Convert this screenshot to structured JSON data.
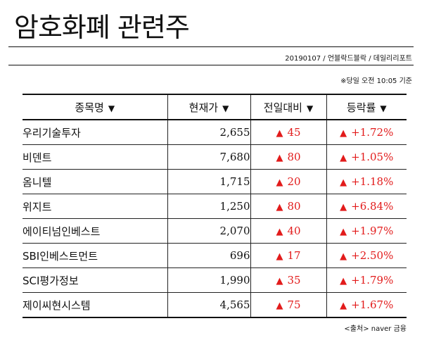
{
  "title": "암호화폐 관련주",
  "source_line": "20190107 / 언블락드블락 / 데일리리포트",
  "as_of": "※당일 오전 10:05 기준",
  "table": {
    "headers": [
      "종목명",
      "현재가",
      "전일대비",
      "등락률"
    ],
    "sort_icon": "▼",
    "rows": [
      {
        "name": "우리기술투자",
        "price": "2,655",
        "change": "45",
        "rate": "+1.72%"
      },
      {
        "name": "비덴트",
        "price": "7,680",
        "change": "80",
        "rate": "+1.05%"
      },
      {
        "name": "옴니텔",
        "price": "1,715",
        "change": "20",
        "rate": "+1.18%"
      },
      {
        "name": "위지트",
        "price": "1,250",
        "change": "80",
        "rate": "+6.84%"
      },
      {
        "name": "에이티넘인베스트",
        "price": "2,070",
        "change": "40",
        "rate": "+1.97%"
      },
      {
        "name": "SBI인베스트먼트",
        "price": "696",
        "change": "17",
        "rate": "+2.50%"
      },
      {
        "name": "SCI평가정보",
        "price": "1,990",
        "change": "35",
        "rate": "+1.79%"
      },
      {
        "name": "제이씨현시스템",
        "price": "4,565",
        "change": "75",
        "rate": "+1.67%"
      }
    ],
    "up_icon": "▲",
    "up_color": "#e21b1b"
  },
  "footer": "<출처> naver 금융"
}
